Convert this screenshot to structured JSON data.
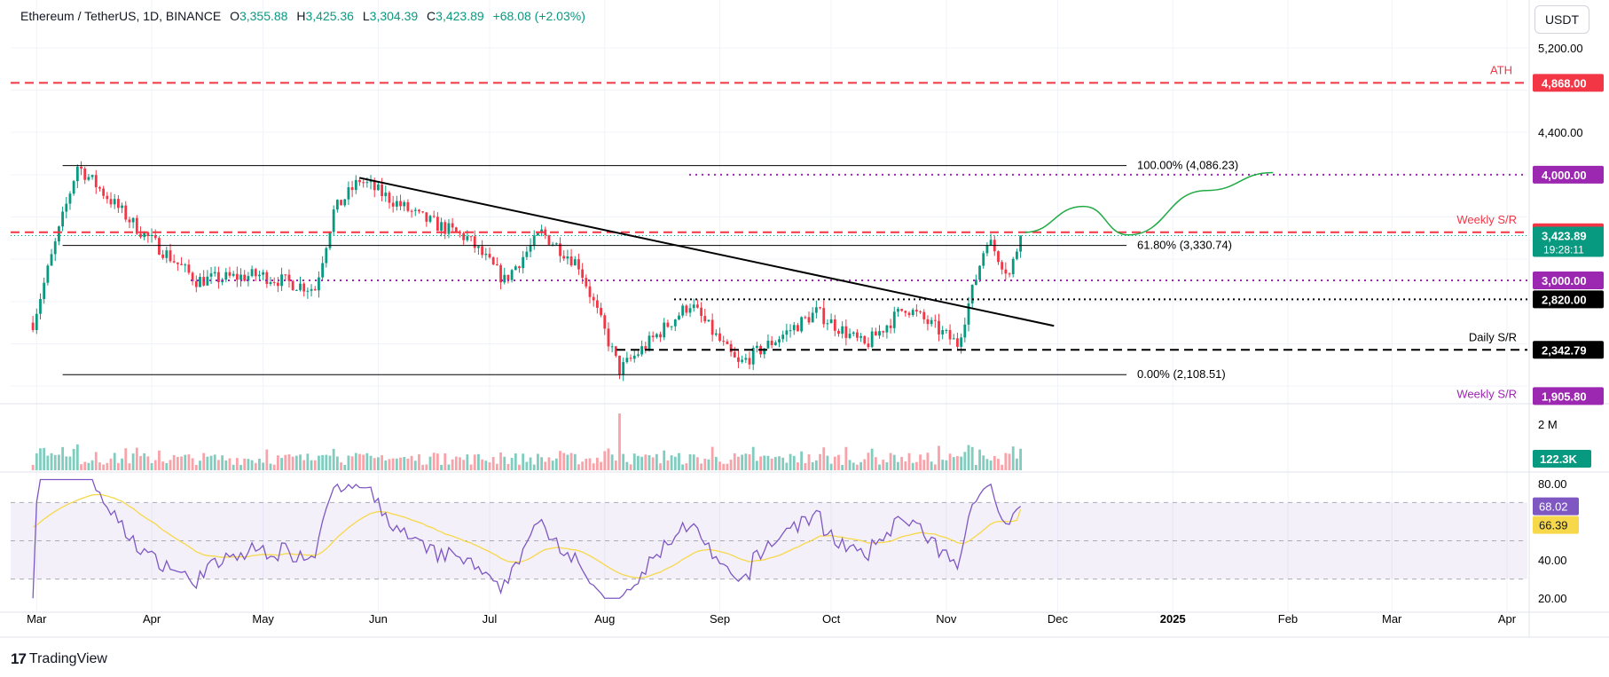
{
  "header": {
    "symbol": "Ethereum / TetherUS, 1D, BINANCE",
    "open_label": "O",
    "open": "3,355.88",
    "high_label": "H",
    "high": "3,425.36",
    "low_label": "L",
    "low": "3,304.39",
    "close_label": "C",
    "close": "3,423.89",
    "change": "+68.08 (+2.03%)"
  },
  "currency": "USDT",
  "brand": "TradingView",
  "colors": {
    "up": "#089981",
    "down": "#f23645",
    "resistance": "#f23645",
    "support_purple": "#9c27b0",
    "black": "#000000",
    "projection": "#22ab45",
    "rsi": "#7e57c2",
    "rsi_ma": "#f7d84a",
    "volume_up": "#80cdbf",
    "volume_down": "#f8a3a9"
  },
  "chart_data": {
    "type": "candlestick",
    "symbol": "Ethereum / TetherUS",
    "timeframe": "1D",
    "exchange": "BINANCE",
    "x_ticks": [
      "Mar",
      "Apr",
      "May",
      "Jun",
      "Jul",
      "Aug",
      "Sep",
      "Oct",
      "Nov",
      "Dec",
      "2025",
      "Feb",
      "Mar",
      "Apr"
    ],
    "y_ticks": [
      "5,200.00",
      "4,400.00"
    ],
    "y_range": [
      1850,
      5350
    ],
    "last_price": 3423.89,
    "countdown": "19:28:11",
    "anchors": [
      {
        "date": "2024-02-29",
        "price": 2600
      },
      {
        "date": "2024-03-12",
        "price": 4086
      },
      {
        "date": "2024-03-28",
        "price": 3500
      },
      {
        "date": "2024-04-13",
        "price": 3000
      },
      {
        "date": "2024-04-30",
        "price": 3050
      },
      {
        "date": "2024-05-15",
        "price": 2920
      },
      {
        "date": "2024-05-20",
        "price": 3650
      },
      {
        "date": "2024-05-27",
        "price": 3950
      },
      {
        "date": "2024-06-12",
        "price": 3600
      },
      {
        "date": "2024-06-25",
        "price": 3400
      },
      {
        "date": "2024-07-05",
        "price": 3000
      },
      {
        "date": "2024-07-15",
        "price": 3450
      },
      {
        "date": "2024-07-25",
        "price": 3150
      },
      {
        "date": "2024-08-05",
        "price": 2150
      },
      {
        "date": "2024-08-24",
        "price": 2780
      },
      {
        "date": "2024-09-06",
        "price": 2200
      },
      {
        "date": "2024-09-27",
        "price": 2700
      },
      {
        "date": "2024-10-10",
        "price": 2380
      },
      {
        "date": "2024-10-21",
        "price": 2750
      },
      {
        "date": "2024-11-04",
        "price": 2400
      },
      {
        "date": "2024-11-12",
        "price": 3400
      },
      {
        "date": "2024-11-18",
        "price": 3050
      },
      {
        "date": "2024-11-21",
        "price": 3424
      }
    ],
    "levels": [
      {
        "name": "ATH",
        "price": 4868.0,
        "label": "4,868.00",
        "color": "#f23645",
        "style": "dashed"
      },
      {
        "name": "100.00% (4,086.23)",
        "price": 4086.23,
        "style": "solid"
      },
      {
        "name": "",
        "price": 4000.0,
        "label": "4,000.00",
        "color": "#9c27b0",
        "style": "dotted"
      },
      {
        "name": "Weekly S/R",
        "price": 3454.98,
        "label": "3,454.98",
        "color": "#f23645",
        "style": "dashed"
      },
      {
        "name": "61.80% (3,330.74)",
        "price": 3330.74,
        "style": "solid"
      },
      {
        "name": "",
        "price": 3000.0,
        "label": "3,000.00",
        "color": "#9c27b0",
        "style": "dotted"
      },
      {
        "name": "",
        "price": 2820.0,
        "label": "2,820.00",
        "color": "#000000",
        "style": "dotted"
      },
      {
        "name": "Daily S/R",
        "price": 2342.79,
        "label": "2,342.79",
        "color": "#000000",
        "style": "dashed"
      },
      {
        "name": "0.00% (2,108.51)",
        "price": 2108.51,
        "style": "solid"
      },
      {
        "name": "Weekly S/R",
        "price": 1905.8,
        "label": "1,905.80",
        "color": "#9c27b0"
      }
    ],
    "trendline": {
      "from": {
        "date": "2024-05-27",
        "price": 3970
      },
      "to": {
        "date": "2024-11-30",
        "price": 2570
      }
    },
    "projection": [
      {
        "date": "2024-11-22",
        "price": 3454
      },
      {
        "date": "2024-12-08",
        "price": 3700
      },
      {
        "date": "2024-12-20",
        "price": 3430
      },
      {
        "date": "2025-01-10",
        "price": 3850
      },
      {
        "date": "2025-01-28",
        "price": 4020
      }
    ],
    "volume": {
      "scale_label": "2 M",
      "last": "122.3K"
    },
    "rsi": {
      "value": 68.02,
      "ma": 66.39,
      "ticks": [
        "80.00",
        "40.00",
        "20.00"
      ],
      "bands": [
        70,
        50,
        30
      ],
      "range": [
        15,
        85
      ]
    }
  }
}
